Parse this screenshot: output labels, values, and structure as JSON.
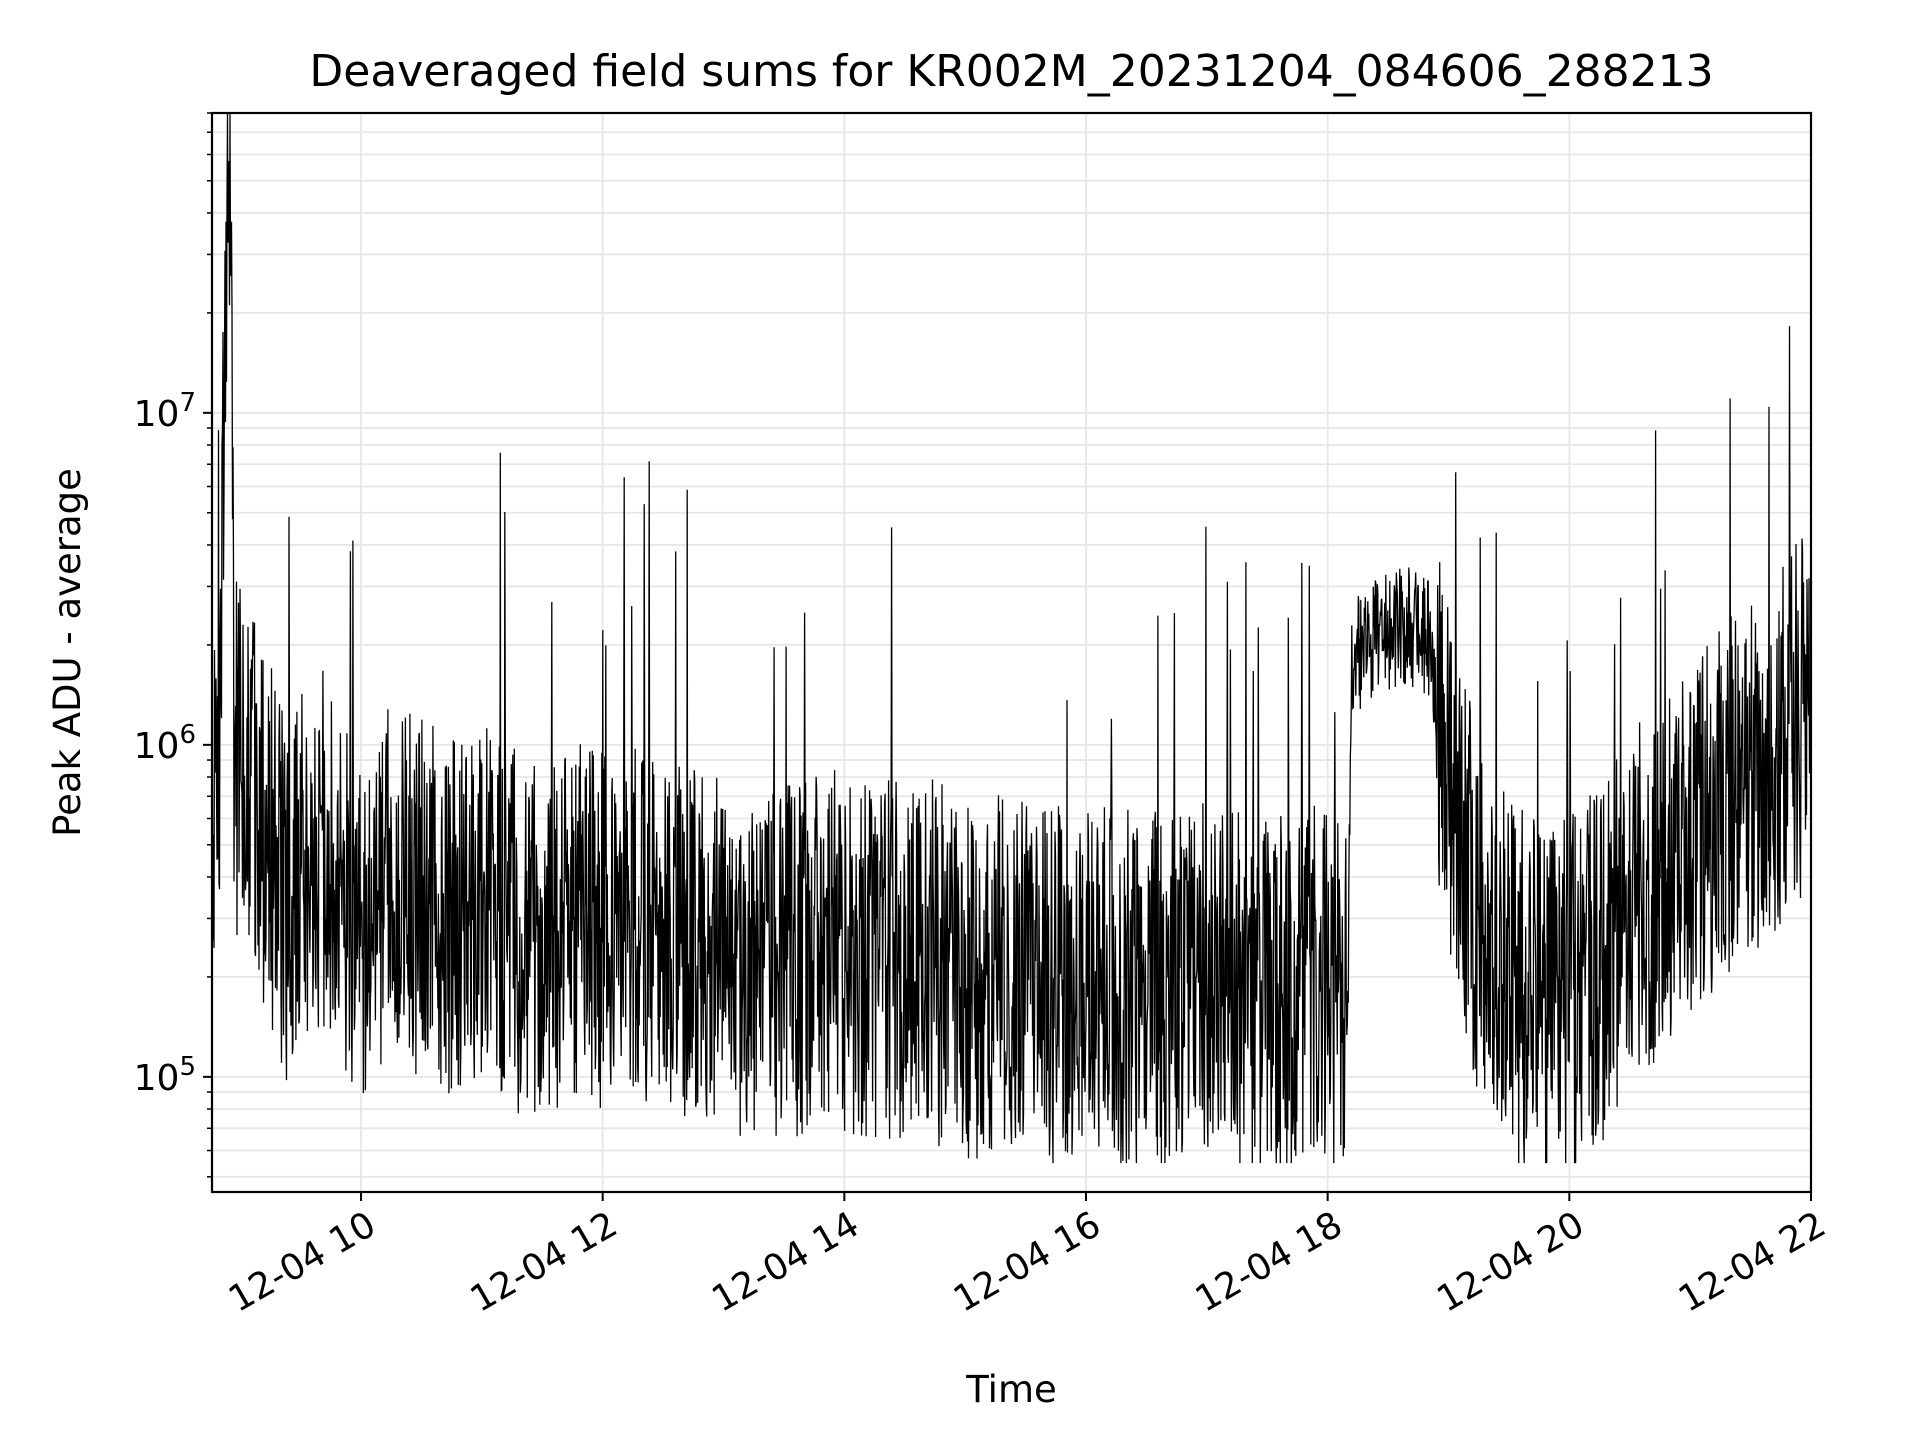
{
  "chart_data": {
    "type": "line",
    "title": "Deaveraged field sums for KR002M_20231204_084606_288213",
    "xlabel": "Time",
    "ylabel": "Peak ADU - average",
    "y_scale": "log",
    "ylim": [
      45000,
      80000000
    ],
    "xlim": [
      "2023-12-04 08:46",
      "2023-12-04 22:00"
    ],
    "x_ticks": [
      {
        "value": "2023-12-04 10:00",
        "label": "12-04 10"
      },
      {
        "value": "2023-12-04 12:00",
        "label": "12-04 12"
      },
      {
        "value": "2023-12-04 14:00",
        "label": "12-04 14"
      },
      {
        "value": "2023-12-04 16:00",
        "label": "12-04 16"
      },
      {
        "value": "2023-12-04 18:00",
        "label": "12-04 18"
      },
      {
        "value": "2023-12-04 20:00",
        "label": "12-04 20"
      },
      {
        "value": "2023-12-04 22:00",
        "label": "12-04 22"
      }
    ],
    "y_ticks": [
      {
        "value": 100000,
        "base": "10",
        "exp": "5"
      },
      {
        "value": 1000000,
        "base": "10",
        "exp": "6"
      },
      {
        "value": 10000000,
        "base": "10",
        "exp": "7"
      }
    ],
    "grid": true,
    "line_color": "#000000",
    "grid_color": "#e6e6e6",
    "series": [
      {
        "color": "#000000",
        "x": [
          "2023-12-04 08:46",
          "2023-12-04 08:50",
          "2023-12-04 08:53",
          "2023-12-04 08:55",
          "2023-12-04 08:57",
          "2023-12-04 09:00",
          "2023-12-04 09:05",
          "2023-12-04 09:10",
          "2023-12-04 09:15",
          "2023-12-04 09:20",
          "2023-12-04 09:25",
          "2023-12-04 09:30",
          "2023-12-04 09:40",
          "2023-12-04 09:50",
          "2023-12-04 10:00",
          "2023-12-04 10:15",
          "2023-12-04 10:30",
          "2023-12-04 10:45",
          "2023-12-04 11:00",
          "2023-12-04 11:15",
          "2023-12-04 11:30",
          "2023-12-04 11:45",
          "2023-12-04 12:00",
          "2023-12-04 12:20",
          "2023-12-04 12:40",
          "2023-12-04 13:00",
          "2023-12-04 13:20",
          "2023-12-04 13:40",
          "2023-12-04 14:00",
          "2023-12-04 14:20",
          "2023-12-04 14:40",
          "2023-12-04 15:00",
          "2023-12-04 15:20",
          "2023-12-04 15:40",
          "2023-12-04 16:00",
          "2023-12-04 16:20",
          "2023-12-04 16:40",
          "2023-12-04 17:00",
          "2023-12-04 17:20",
          "2023-12-04 17:40",
          "2023-12-04 18:00",
          "2023-12-04 18:10",
          "2023-12-04 18:12",
          "2023-12-04 18:20",
          "2023-12-04 18:30",
          "2023-12-04 18:40",
          "2023-12-04 18:50",
          "2023-12-04 19:00",
          "2023-12-04 19:10",
          "2023-12-04 19:20",
          "2023-12-04 19:30",
          "2023-12-04 19:40",
          "2023-12-04 19:50",
          "2023-12-04 20:00",
          "2023-12-04 20:15",
          "2023-12-04 20:30",
          "2023-12-04 20:45",
          "2023-12-04 21:00",
          "2023-12-04 21:15",
          "2023-12-04 21:30",
          "2023-12-04 21:45",
          "2023-12-04 22:00"
        ],
        "y": [
          500000,
          1000000,
          35000000,
          55000000,
          900000,
          1000000,
          800000,
          600000,
          500000,
          400000,
          300000,
          450000,
          500000,
          350000,
          300000,
          400000,
          350000,
          300000,
          350000,
          280000,
          250000,
          300000,
          280000,
          300000,
          250000,
          230000,
          220000,
          230000,
          240000,
          220000,
          230000,
          200000,
          200000,
          190000,
          180000,
          190000,
          180000,
          190000,
          180000,
          180000,
          200000,
          180000,
          1800000,
          2000000,
          2200000,
          2300000,
          2100000,
          900000,
          400000,
          250000,
          200000,
          180000,
          170000,
          180000,
          220000,
          300000,
          400000,
          500000,
          650000,
          800000,
          1000000,
          1300000
        ]
      }
    ]
  }
}
